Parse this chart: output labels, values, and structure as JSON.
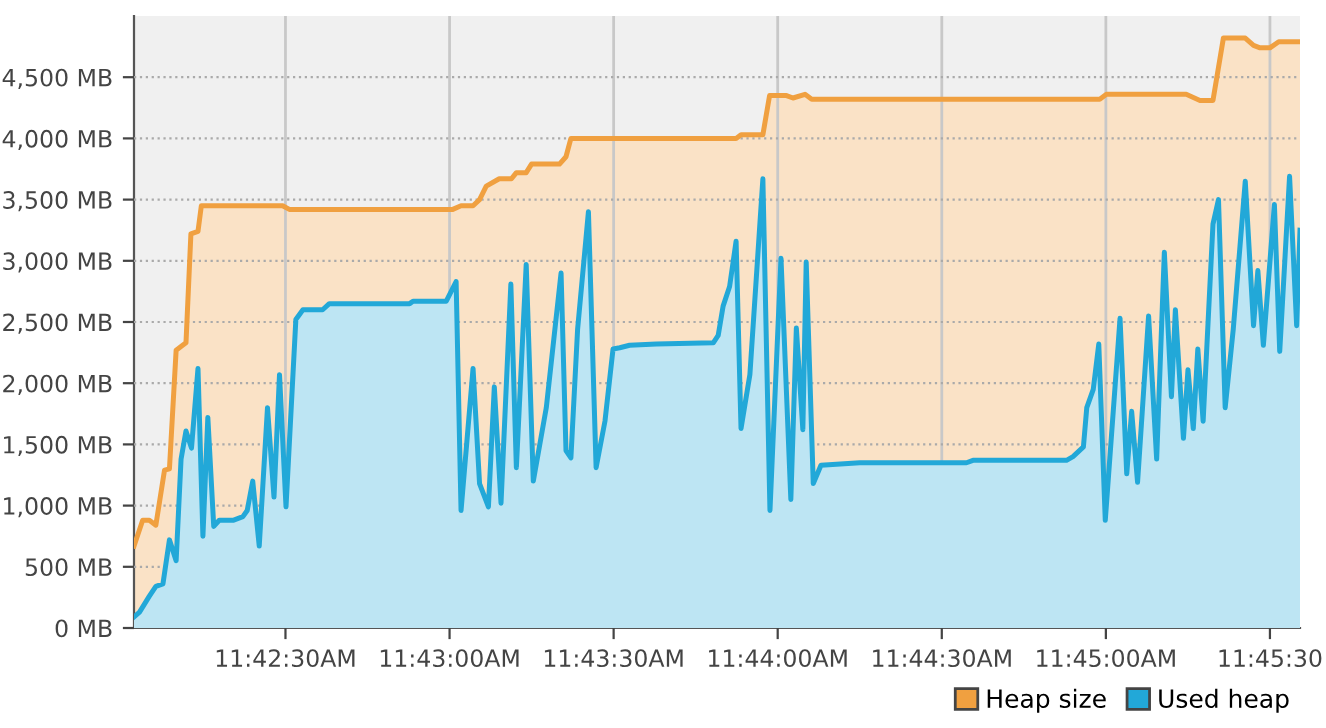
{
  "chart_data": {
    "type": "area",
    "xlim": [
      11.70064,
      11.75986
    ],
    "ylim": [
      0,
      5000
    ],
    "xticks": [
      {
        "value": 11.708333,
        "label": "11:42:30AM"
      },
      {
        "value": 11.716667,
        "label": "11:43:00AM"
      },
      {
        "value": 11.725,
        "label": "11:43:30AM"
      },
      {
        "value": 11.733333,
        "label": "11:44:00AM"
      },
      {
        "value": 11.741667,
        "label": "11:44:30AM"
      },
      {
        "value": 11.75,
        "label": "11:45:00AM"
      },
      {
        "value": 11.758333,
        "label": "11:45:30"
      }
    ],
    "yticks": [
      {
        "value": 0,
        "label": "0 MB"
      },
      {
        "value": 500,
        "label": "500 MB"
      },
      {
        "value": 1000,
        "label": "1,000 MB"
      },
      {
        "value": 1500,
        "label": "1,500 MB"
      },
      {
        "value": 2000,
        "label": "2,000 MB"
      },
      {
        "value": 2500,
        "label": "2,500 MB"
      },
      {
        "value": 3000,
        "label": "3,000 MB"
      },
      {
        "value": 3500,
        "label": "3,500 MB"
      },
      {
        "value": 4000,
        "label": "4,000 MB"
      },
      {
        "value": 4500,
        "label": "4,500 MB"
      }
    ],
    "grid": true,
    "legend": "bottom right",
    "marker": "none",
    "line_style": "solid",
    "series": [
      {
        "name": "Heap size",
        "color": "#f0a040",
        "x": [
          11.70064,
          11.70108,
          11.70142,
          11.70175,
          11.70219,
          11.70244,
          11.70278,
          11.70311,
          11.70328,
          11.70353,
          11.70389,
          11.70406,
          11.70819,
          11.70853,
          11.71683,
          11.71725,
          11.71786,
          11.71819,
          11.71853,
          11.71919,
          11.71981,
          11.72006,
          11.72056,
          11.72083,
          11.72225,
          11.72258,
          11.72283,
          11.73122,
          11.73147,
          11.73258,
          11.73292,
          11.73378,
          11.73411,
          11.73472,
          11.73506,
          11.74969,
          11.75003,
          11.75408,
          11.75478,
          11.75544,
          11.75597,
          11.75708,
          11.7575,
          11.75783,
          11.75833,
          11.75878,
          11.75986
        ],
        "values": [
          670,
          880,
          880,
          840,
          1290,
          1300,
          2270,
          2310,
          2330,
          3220,
          3240,
          3450,
          3450,
          3420,
          3420,
          3450,
          3450,
          3500,
          3610,
          3670,
          3670,
          3720,
          3720,
          3790,
          3790,
          3850,
          4000,
          4000,
          4030,
          4030,
          4350,
          4350,
          4330,
          4360,
          4320,
          4320,
          4360,
          4360,
          4310,
          4310,
          4820,
          4820,
          4760,
          4740,
          4740,
          4790,
          4790
        ]
      },
      {
        "name": "Used heap",
        "color": "#22a8d8",
        "x": [
          11.70064,
          11.70092,
          11.70142,
          11.70175,
          11.70211,
          11.70244,
          11.70278,
          11.70303,
          11.70328,
          11.70356,
          11.70389,
          11.70414,
          11.70439,
          11.70469,
          11.70497,
          11.70567,
          11.70617,
          11.70639,
          11.70667,
          11.707,
          11.70742,
          11.70775,
          11.70803,
          11.70836,
          11.70886,
          11.70922,
          11.71022,
          11.71056,
          11.71464,
          11.71481,
          11.7165,
          11.717,
          11.71725,
          11.71786,
          11.71819,
          11.71864,
          11.71894,
          11.71928,
          11.71978,
          11.72006,
          11.72056,
          11.72092,
          11.72158,
          11.72233,
          11.72258,
          11.72283,
          11.72317,
          11.72372,
          11.72411,
          11.72456,
          11.72497,
          11.72531,
          11.72581,
          11.72717,
          11.73006,
          11.73031,
          11.73056,
          11.73089,
          11.73122,
          11.73147,
          11.73192,
          11.73258,
          11.73294,
          11.7335,
          11.734,
          11.73428,
          11.73461,
          11.73478,
          11.73514,
          11.73553,
          11.7375,
          11.74292,
          11.74325,
          11.748,
          11.74833,
          11.74886,
          11.74903,
          11.74936,
          11.74964,
          11.74997,
          11.75072,
          11.75106,
          11.75131,
          11.75161,
          11.75217,
          11.75258,
          11.75297,
          11.75333,
          11.75353,
          11.75394,
          11.75417,
          11.75444,
          11.75467,
          11.75494,
          11.75544,
          11.75572,
          11.75606,
          11.75647,
          11.75708,
          11.7575,
          11.75772,
          11.758,
          11.75856,
          11.75883,
          11.75933,
          11.75969,
          11.75986
        ],
        "values": [
          90,
          130,
          260,
          340,
          360,
          720,
          550,
          1380,
          1610,
          1470,
          2120,
          750,
          1720,
          830,
          880,
          880,
          910,
          960,
          1200,
          670,
          1800,
          1070,
          2070,
          990,
          2520,
          2600,
          2600,
          2650,
          2650,
          2670,
          2670,
          2830,
          960,
          2120,
          1180,
          990,
          1970,
          1020,
          2810,
          1310,
          2970,
          1200,
          1800,
          2900,
          1450,
          1390,
          2440,
          3400,
          1310,
          1690,
          2280,
          2290,
          2310,
          2320,
          2330,
          2390,
          2630,
          2790,
          3160,
          1630,
          2070,
          3670,
          960,
          3020,
          1050,
          2450,
          1620,
          2990,
          1180,
          1330,
          1350,
          1350,
          1370,
          1370,
          1400,
          1480,
          1800,
          1950,
          2320,
          880,
          2530,
          1260,
          1770,
          1190,
          2550,
          1380,
          3070,
          1890,
          2600,
          1550,
          2110,
          1630,
          2280,
          1690,
          3300,
          3500,
          1800,
          2440,
          3650,
          2470,
          2920,
          2310,
          3460,
          2260,
          3690,
          2470,
          3250
        ]
      }
    ]
  }
}
